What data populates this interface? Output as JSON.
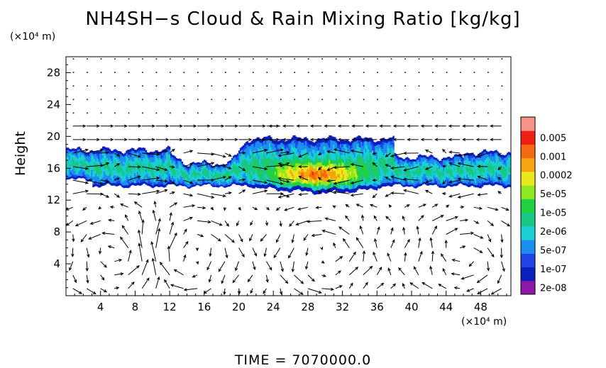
{
  "title": "NH4SH−s Cloud & Rain Mixing Ratio [kg/kg]",
  "time_label": "TIME  =  7070000.0",
  "colors": {
    "cloud_scale": [
      "#8b18a8",
      "#0a1fbf",
      "#1f45e8",
      "#1c8ef0",
      "#19cfd4",
      "#18c786",
      "#20d040",
      "#8ee820",
      "#e8e81c",
      "#f7a40e",
      "#f56a10",
      "#ee2016",
      "#f7928a"
    ]
  },
  "chart_data": {
    "type": "heatmap",
    "title": "NH4SH−s Cloud & Rain Mixing Ratio [kg/kg]",
    "ylabel": "Height",
    "x_unit": "(×10⁴ m)",
    "y_unit": "(×10⁴ m)",
    "xlim": [
      0,
      51.5
    ],
    "ylim": [
      0,
      30
    ],
    "x_ticks": [
      4,
      8,
      12,
      16,
      20,
      24,
      28,
      32,
      36,
      40,
      44,
      48
    ],
    "y_ticks": [
      4,
      8,
      12,
      16,
      20,
      24,
      28
    ],
    "colorbar": {
      "labels": [
        "0.005",
        "0.001",
        "0.0002",
        "5e-05",
        "1e-05",
        "2e-06",
        "5e-07",
        "1e-07",
        "2e-08"
      ]
    }
  }
}
